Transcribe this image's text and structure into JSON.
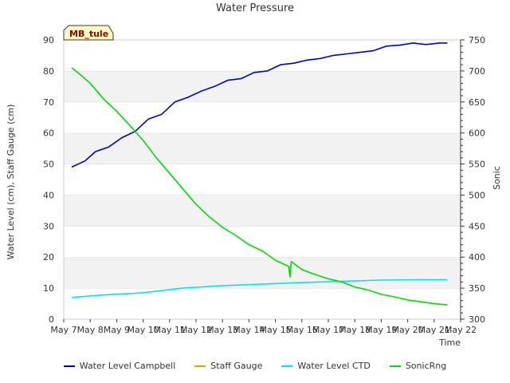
{
  "chart_data": {
    "type": "line",
    "title": "Water Pressure",
    "site_label": "MB_tule",
    "xlabel": "Time",
    "ylabel_left": "Water Level (cm), Staff Gauge (cm)",
    "ylabel_right": "Sonic",
    "x_ticks": [
      "May 7",
      "May 8",
      "May 9",
      "May 10",
      "May 11",
      "May 12",
      "May 13",
      "May 14",
      "May 15",
      "May 16",
      "May 17",
      "May 18",
      "May 19",
      "May 20",
      "May 21",
      "May 22"
    ],
    "xlim": [
      0,
      15
    ],
    "ylim_left": [
      0,
      90
    ],
    "yticks_left": [
      0,
      10,
      20,
      30,
      40,
      50,
      60,
      70,
      80,
      90
    ],
    "ylim_right": [
      300,
      750
    ],
    "yticks_right": [
      300,
      350,
      400,
      450,
      500,
      550,
      600,
      650,
      700,
      750
    ],
    "grid_bands": true,
    "legend_position": "bottom",
    "series": [
      {
        "name": "Water Level Campbell",
        "color": "#0000cc",
        "axis": "left",
        "x": [
          0.3,
          0.8,
          1.2,
          1.7,
          2.2,
          2.7,
          3.2,
          3.7,
          4.2,
          4.7,
          5.2,
          5.7,
          6.2,
          6.7,
          7.2,
          7.7,
          8.2,
          8.7,
          9.2,
          9.7,
          10.2,
          10.7,
          11.2,
          11.7,
          12.2,
          12.7,
          13.2,
          13.7,
          14.2,
          14.5
        ],
        "y": [
          49,
          51,
          54,
          55.5,
          58.5,
          60.5,
          64.5,
          66,
          70,
          71.5,
          73.5,
          75,
          77,
          77.5,
          79.5,
          80,
          82,
          82.5,
          83.5,
          84,
          85,
          85.5,
          86,
          86.5,
          88,
          88.3,
          89,
          88.5,
          89,
          89
        ]
      },
      {
        "name": "Staff Gauge",
        "color": "#e6a000",
        "axis": "left",
        "x": [],
        "y": []
      },
      {
        "name": "Water Level CTD",
        "color": "#00e5e5",
        "axis": "left",
        "x": [
          0.3,
          1.5,
          3,
          4.5,
          6,
          7.5,
          9,
          10.5,
          12,
          13.5,
          14.5
        ],
        "y": [
          7,
          7.8,
          8.5,
          10,
          10.8,
          11.3,
          11.8,
          12.2,
          12.6,
          12.7,
          12.7
        ]
      },
      {
        "name": "SonicRng",
        "color": "#00dd00",
        "axis": "right",
        "x": [
          0.3,
          0.6,
          1.0,
          1.5,
          2.0,
          2.5,
          3.0,
          3.5,
          4.0,
          4.5,
          5.0,
          5.5,
          6.0,
          6.5,
          7.0,
          7.5,
          8.0,
          8.5,
          8.55,
          8.6,
          9.0,
          9.5,
          10.0,
          10.5,
          11.0,
          11.5,
          12.0,
          12.5,
          13.0,
          13.5,
          14.0,
          14.5
        ],
        "y": [
          705,
          695,
          680,
          655,
          635,
          612,
          588,
          560,
          535,
          510,
          485,
          465,
          448,
          435,
          420,
          410,
          395,
          385,
          368,
          393,
          380,
          372,
          365,
          360,
          352,
          347,
          340,
          336,
          331,
          328,
          325,
          323
        ]
      }
    ]
  }
}
